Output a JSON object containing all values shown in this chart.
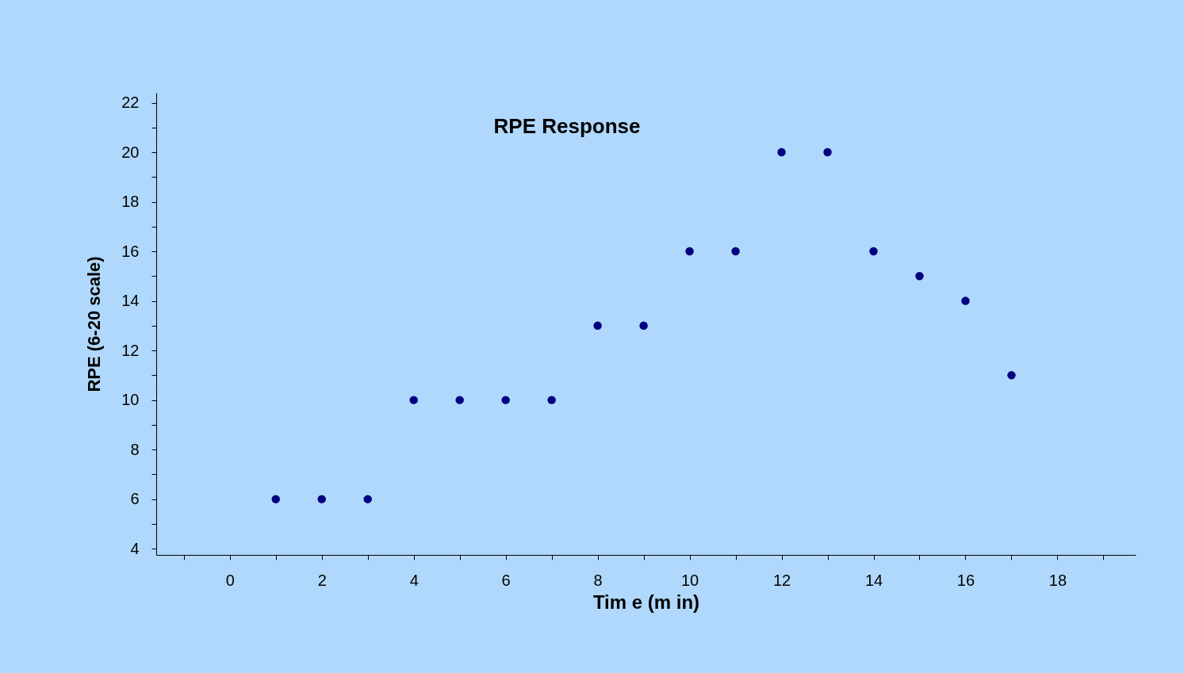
{
  "chart_data": {
    "type": "scatter",
    "title": "RPE Response",
    "xlabel": "Tim e  (m in)",
    "ylabel": "RPE (6-20 scale)",
    "x": [
      1,
      2,
      3,
      4,
      5,
      6,
      7,
      8,
      9,
      10,
      11,
      12,
      13,
      14,
      15,
      16,
      17
    ],
    "series": [
      {
        "color": "#000080",
        "values": [
          6,
          6,
          6,
          10,
          10,
          10,
          10,
          13,
          13,
          16,
          16,
          20,
          20,
          16,
          15,
          14,
          11
        ]
      }
    ],
    "xlim": [
      -1.6,
      19.7
    ],
    "ylim": [
      3.75,
      22.4
    ],
    "xticks": [
      {
        "value": -1,
        "label": null
      },
      0,
      {
        "value": 1,
        "label": null
      },
      2,
      {
        "value": 3,
        "label": null
      },
      4,
      {
        "value": 5,
        "label": null
      },
      6,
      {
        "value": 7,
        "label": null
      },
      8,
      {
        "value": 9,
        "label": null
      },
      10,
      {
        "value": 11,
        "label": null
      },
      12,
      {
        "value": 13,
        "label": null
      },
      14,
      {
        "value": 15,
        "label": null
      },
      16,
      {
        "value": 17,
        "label": null
      },
      18,
      {
        "value": 19,
        "label": null
      }
    ],
    "yticks": [
      4,
      {
        "value": 5,
        "label": null
      },
      6,
      {
        "value": 7,
        "label": null
      },
      8,
      {
        "value": 9,
        "label": null
      },
      10,
      {
        "value": 11,
        "label": null
      },
      12,
      {
        "value": 13,
        "label": null
      },
      14,
      {
        "value": 15,
        "label": null
      },
      16,
      {
        "value": 17,
        "label": null
      },
      18,
      {
        "value": 19,
        "label": null
      },
      20,
      {
        "value": 21,
        "label": null
      },
      22
    ],
    "marker": "circle",
    "grid": false
  }
}
